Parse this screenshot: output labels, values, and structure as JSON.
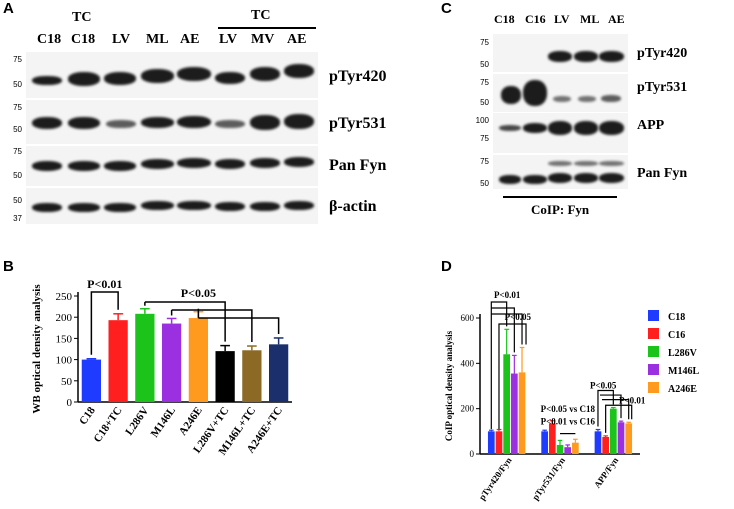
{
  "panels": {
    "A": "A",
    "B": "B",
    "C": "C",
    "D": "D"
  },
  "blotA": {
    "tc_header_left": "TC",
    "tc_header_right": "TC",
    "lanes": [
      "C18",
      "C18",
      "LV",
      "ML",
      "AE",
      "LV",
      "MV",
      "AE"
    ],
    "rows": [
      {
        "label": "pTyr420",
        "mw": [
          "75",
          "50"
        ]
      },
      {
        "label": "pTyr531",
        "mw": [
          "75",
          "50"
        ]
      },
      {
        "label": "Pan Fyn",
        "mw": [
          "75",
          "50"
        ]
      },
      {
        "label": "β-actin",
        "mw": [
          "50",
          "37"
        ]
      }
    ]
  },
  "blotC": {
    "lanes": [
      "C18",
      "C16",
      "LV",
      "ML",
      "AE"
    ],
    "rows": [
      {
        "label": "pTyr420",
        "mw": [
          "75",
          "50"
        ]
      },
      {
        "label": "pTyr531",
        "mw": [
          "75",
          "50"
        ]
      },
      {
        "label": "APP",
        "mw": [
          "100",
          "75"
        ]
      },
      {
        "label": "Pan Fyn",
        "mw": [
          "75",
          "50"
        ]
      }
    ],
    "footer": "CoIP: Fyn"
  },
  "chart_data": [
    {
      "type": "bar",
      "categories": [
        "C18",
        "C18+TC",
        "L286V",
        "M146L",
        "A246E",
        "L286V+TC",
        "M146L+TC",
        "A246E+TC"
      ],
      "values": [
        100,
        193,
        208,
        185,
        198,
        120,
        122,
        136
      ],
      "errors": [
        2,
        15,
        12,
        12,
        15,
        13,
        10,
        15
      ],
      "colors": [
        "#1f3bff",
        "#ff1f1f",
        "#1bc31b",
        "#9b30e0",
        "#ff9a1f",
        "#000000",
        "#8c6a25",
        "#1a2f6b"
      ],
      "ylabel": "WB optical density analysis",
      "ylim": [
        0,
        250
      ],
      "yticks": [
        0,
        50,
        100,
        150,
        200,
        250
      ],
      "annotations": [
        "P<0.01",
        "P<0.05"
      ]
    },
    {
      "type": "bar",
      "categories": [
        "pTyr420/Fyn",
        "pTyr531/Fyn",
        "APP/Fyn"
      ],
      "series": [
        {
          "name": "C18",
          "color": "#1f3bff",
          "values": [
            100,
            100,
            100
          ],
          "errors": [
            5,
            5,
            8
          ]
        },
        {
          "name": "C16",
          "color": "#ff1f1f",
          "values": [
            100,
            135,
            75
          ],
          "errors": [
            8,
            12,
            5
          ]
        },
        {
          "name": "L286V",
          "color": "#1bc31b",
          "values": [
            440,
            40,
            200
          ],
          "errors": [
            110,
            20,
            5
          ]
        },
        {
          "name": "M146L",
          "color": "#9b30e0",
          "values": [
            355,
            30,
            140
          ],
          "errors": [
            80,
            10,
            5
          ]
        },
        {
          "name": "A246E",
          "color": "#ff9a1f",
          "values": [
            360,
            50,
            135
          ],
          "errors": [
            110,
            15,
            5
          ]
        }
      ],
      "ylabel": "CoIP optical density analysis",
      "ylim": [
        0,
        600
      ],
      "yticks": [
        0,
        200,
        400,
        600
      ],
      "annotations": [
        "P<0.01",
        "P<0.05",
        "P<0.05 vs C18",
        "P<0.01 vs C16",
        "P<0.05",
        "P<0.01"
      ]
    }
  ]
}
